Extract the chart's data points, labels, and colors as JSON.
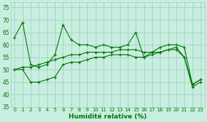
{
  "x": [
    0,
    1,
    2,
    3,
    4,
    5,
    6,
    7,
    8,
    9,
    10,
    11,
    12,
    13,
    14,
    15,
    16,
    17,
    18,
    19,
    20,
    21,
    22,
    23
  ],
  "line1": [
    63,
    69,
    52,
    51,
    52,
    56,
    68,
    62,
    60,
    60,
    59,
    60,
    59,
    59,
    60,
    65,
    55,
    57,
    59,
    60,
    60,
    59,
    44,
    46
  ],
  "line2": [
    50,
    51,
    51,
    52,
    53,
    54,
    55,
    56,
    56,
    57,
    57,
    57,
    57,
    58,
    58,
    58,
    57,
    57,
    57,
    58,
    58,
    55,
    44,
    46
  ],
  "line3": [
    50,
    50,
    45,
    45,
    46,
    47,
    52,
    53,
    53,
    54,
    55,
    55,
    56,
    56,
    56,
    55,
    55,
    56,
    57,
    58,
    59,
    55,
    43,
    45
  ],
  "line_color": "#007700",
  "bg_color": "#c8eee0",
  "grid_color": "#99ccbb",
  "xlabel": "Humidité relative (%)",
  "ylim": [
    35,
    77
  ],
  "yticks": [
    35,
    40,
    45,
    50,
    55,
    60,
    65,
    70,
    75
  ],
  "xticks": [
    0,
    1,
    2,
    3,
    4,
    5,
    6,
    7,
    8,
    9,
    10,
    11,
    12,
    13,
    14,
    15,
    16,
    17,
    18,
    19,
    20,
    21,
    22,
    23
  ]
}
